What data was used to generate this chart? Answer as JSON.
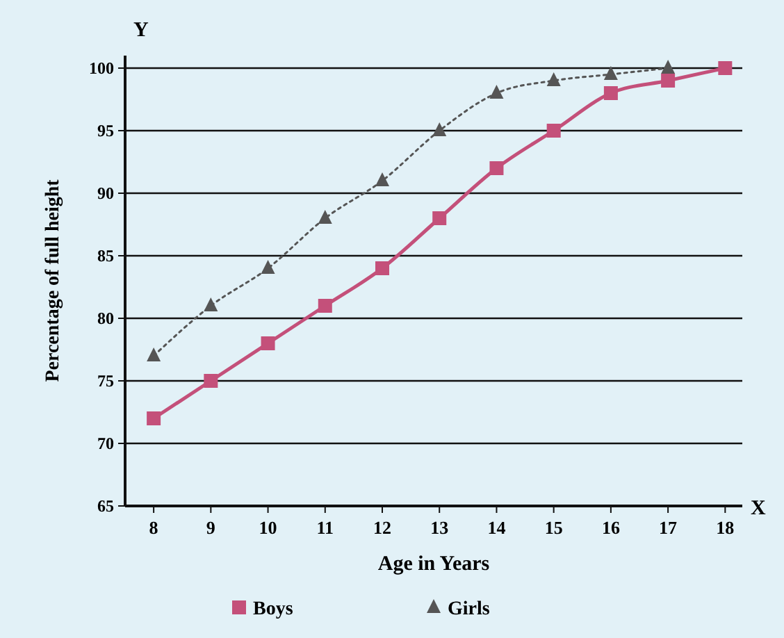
{
  "chart_data": {
    "type": "line",
    "xlabel": "Age in Years",
    "ylabel": "Percentage of full height",
    "x": [
      8,
      9,
      10,
      11,
      12,
      13,
      14,
      15,
      16,
      17,
      18
    ],
    "series": [
      {
        "name": "Boys",
        "color": "#c4507a",
        "marker": "square",
        "line_style": "solid",
        "values": [
          72,
          75,
          78,
          81,
          84,
          88,
          92,
          95,
          98,
          99,
          100
        ]
      },
      {
        "name": "Girls",
        "color": "#555555",
        "marker": "triangle",
        "line_style": "dotted",
        "values": [
          77,
          81,
          84,
          88,
          91,
          95,
          98,
          99,
          99.5,
          100,
          null
        ]
      }
    ],
    "xlim": [
      7.5,
      18.3
    ],
    "xticks": [
      8,
      9,
      10,
      11,
      12,
      13,
      14,
      15,
      16,
      17,
      18
    ],
    "ylim": [
      65,
      101
    ],
    "yticks": [
      65,
      70,
      75,
      80,
      85,
      90,
      95,
      100
    ],
    "grid": "y",
    "legend": "bottom",
    "annotations": [
      "Y",
      "X"
    ]
  }
}
